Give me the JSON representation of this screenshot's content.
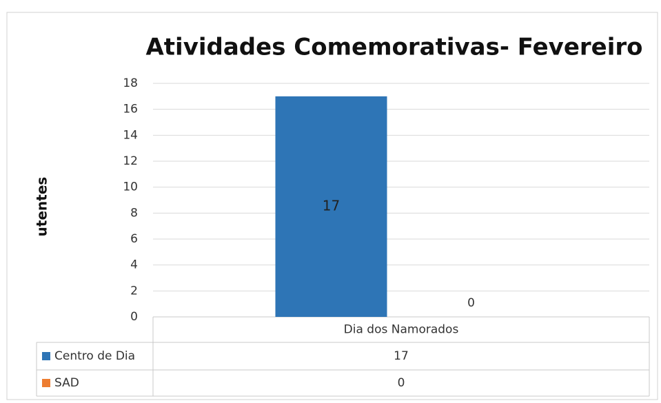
{
  "chart_data": {
    "type": "bar",
    "title": "Atividades Comemorativas- Fevereiro",
    "y_label": "utentes",
    "categories": [
      "Dia dos Namorados"
    ],
    "series": [
      {
        "name": "Centro de Dia",
        "color": "#2e75b6",
        "values": [
          17
        ]
      },
      {
        "name": "SAD",
        "color": "#ed7d31",
        "values": [
          0
        ]
      }
    ],
    "ylim": [
      0,
      18
    ],
    "yticks": [
      0,
      2,
      4,
      6,
      8,
      10,
      12,
      14,
      16,
      18
    ],
    "grid": true,
    "data_table": true
  }
}
